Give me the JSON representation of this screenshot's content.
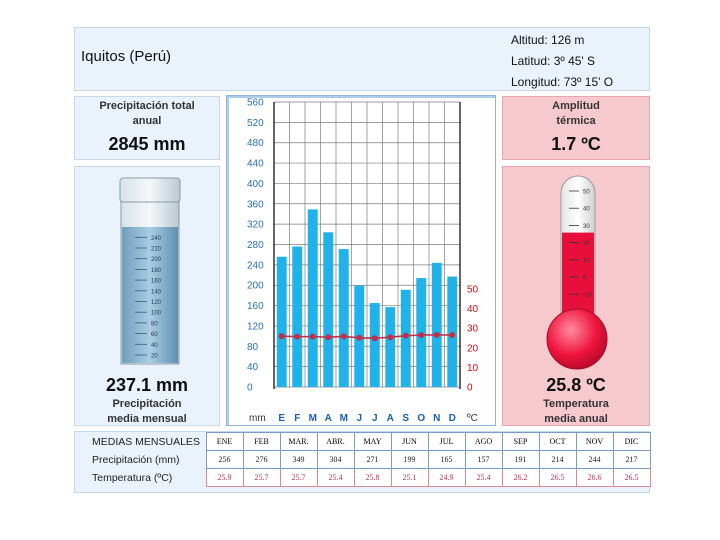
{
  "header": {
    "city": "Iquitos (Perú)",
    "altitude": "Altitud: 126 m",
    "latitude": "Latitud:  3º 45' S",
    "longitude": "Longitud:  73º 15' O"
  },
  "precip_panel": {
    "title_line1": "Precipitación total",
    "title_line2": "anual",
    "value": "2845 mm"
  },
  "monthly_precip_panel": {
    "value": "237.1 mm",
    "label_line1": "Precipitación",
    "label_line2": "media mensual",
    "scale": [
      "20",
      "40",
      "60",
      "80",
      "100",
      "120",
      "140",
      "160",
      "180",
      "200",
      "220",
      "240"
    ]
  },
  "amplitude_panel": {
    "title_line1": "Amplitud",
    "title_line2": "térmica",
    "value": "1.7 ºC"
  },
  "temp_panel": {
    "value": "25.8 ºC",
    "label_line1": "Temperatura",
    "label_line2": "media anual",
    "scale": [
      "50",
      "40",
      "30",
      "20",
      "10",
      "0",
      "-10"
    ],
    "fill_level_c": 25.8
  },
  "chart_data": {
    "type": "bar",
    "categories": [
      "E",
      "F",
      "M",
      "A",
      "M",
      "J",
      "J",
      "A",
      "S",
      "O",
      "N",
      "D"
    ],
    "series": [
      {
        "values": [
          256,
          276,
          349,
          304,
          271,
          199,
          165,
          157,
          191,
          214,
          244,
          217
        ],
        "axis": "left",
        "kind": "bar"
      },
      {
        "values": [
          25.9,
          25.7,
          25.7,
          25.4,
          25.8,
          25.1,
          24.9,
          25.4,
          26.2,
          26.5,
          26.6,
          26.5
        ],
        "axis": "right",
        "kind": "line"
      }
    ],
    "ylim_left": [
      0,
      560
    ],
    "left_ticks": [
      "0",
      "40",
      "80",
      "120",
      "160",
      "200",
      "240",
      "280",
      "320",
      "360",
      "400",
      "440",
      "480",
      "520",
      "560"
    ],
    "ylim_right": [
      0,
      50
    ],
    "right_ticks": [
      "0",
      "10",
      "20",
      "30",
      "40",
      "50"
    ],
    "xlabel_left": "mm",
    "xlabel_right": "ºC",
    "grid": true,
    "colors": {
      "bar": "#1fb3ea",
      "line": "#c0304a",
      "axis_left": "#2a6fbd",
      "axis_right": "#cc1010"
    }
  },
  "table": {
    "header_label": "MEDIAS MENSUALES",
    "months": [
      "ENE",
      "FEB",
      "MAR.",
      "ABR.",
      "MAY",
      "JUN",
      "JUL",
      "AGO",
      "SEP",
      "OCT",
      "NOV",
      "DIC"
    ],
    "precip_label": "Precipitación (mm)",
    "precip": [
      "256",
      "276",
      "349",
      "304",
      "271",
      "199",
      "165",
      "157",
      "191",
      "214",
      "244",
      "217"
    ],
    "temp_label": "Temperatura (ºC)",
    "temp": [
      "25.9",
      "25.7",
      "25.7",
      "25.4",
      "25.8",
      "25.1",
      "24.9",
      "25.4",
      "26.2",
      "26.5",
      "26.6",
      "26.5"
    ]
  }
}
